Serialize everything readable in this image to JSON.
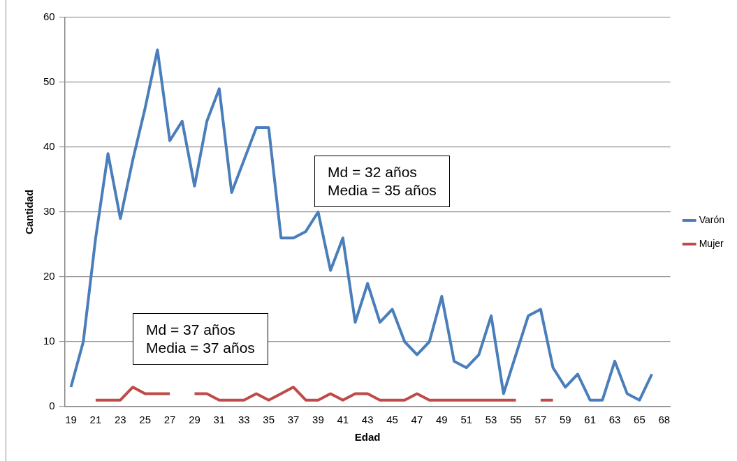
{
  "chart_data": {
    "type": "line",
    "xlabel": "Edad",
    "ylabel": "Cantidad",
    "categories": [
      "19",
      null,
      "21",
      null,
      "23",
      null,
      "25",
      null,
      "27",
      null,
      "29",
      null,
      "31",
      null,
      "33",
      null,
      "35",
      null,
      "37",
      null,
      "39",
      null,
      "41",
      null,
      "43",
      null,
      "45",
      null,
      "47",
      null,
      "49",
      null,
      "51",
      null,
      "53",
      null,
      "55",
      null,
      "57",
      null,
      "59",
      null,
      "61",
      null,
      "63",
      null,
      "65",
      null,
      "68"
    ],
    "series": [
      {
        "name": "Varón",
        "color": "#4a7ebb",
        "values": [
          3,
          10,
          26,
          39,
          29,
          38,
          46,
          55,
          41,
          44,
          34,
          44,
          49,
          33,
          38,
          43,
          43,
          26,
          26,
          27,
          30,
          21,
          26,
          13,
          19,
          13,
          15,
          10,
          8,
          10,
          17,
          7,
          6,
          8,
          14,
          2,
          8,
          14,
          15,
          6,
          3,
          5,
          1,
          1,
          7,
          2,
          1,
          5,
          null
        ]
      },
      {
        "name": "Mujer",
        "color": "#be4b48",
        "values": [
          null,
          null,
          1,
          1,
          1,
          3,
          2,
          2,
          2,
          null,
          2,
          2,
          1,
          1,
          1,
          2,
          1,
          2,
          3,
          1,
          1,
          2,
          1,
          2,
          2,
          1,
          1,
          1,
          2,
          1,
          1,
          1,
          1,
          1,
          1,
          1,
          1,
          null,
          1,
          1,
          null,
          null,
          null,
          null,
          null,
          null,
          null,
          null,
          null
        ]
      }
    ],
    "ylim": [
      0,
      60
    ],
    "yticks": [
      0,
      10,
      20,
      30,
      40,
      50,
      60
    ],
    "grid": "y",
    "legend": "right",
    "marker": "none",
    "line_style": "solid",
    "annotations": [
      "Md = 32 años\nMedia = 35 años",
      "Md = 37 años\nMedia = 37 años"
    ]
  }
}
